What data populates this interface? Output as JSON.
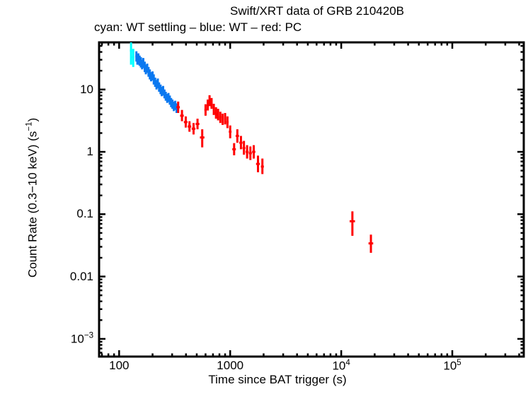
{
  "chart_data": {
    "type": "scatter",
    "title": "Swift/XRT data of GRB 210420B",
    "subtitle": "cyan: WT settling – blue: WT – red: PC",
    "xlabel": "Time since BAT trigger (s)",
    "ylabel": {
      "prefix": "Count Rate (0.3−10 keV) (s",
      "sup": "−1",
      "suffix": ")"
    },
    "xscale": "log",
    "yscale": "log",
    "grid": false,
    "legend_position": "encoded in subtitle colors",
    "xlim": [
      66,
      440000
    ],
    "ylim": [
      0.00052,
      57
    ],
    "x_ticks": [
      {
        "value": 100,
        "label": "100"
      },
      {
        "value": 1000,
        "label": "1000"
      },
      {
        "value": 10000,
        "label": "10",
        "sup": "4"
      },
      {
        "value": 100000,
        "label": "10",
        "sup": "5"
      }
    ],
    "y_ticks": [
      {
        "value": 10,
        "label": "10"
      },
      {
        "value": 1,
        "label": "1"
      },
      {
        "value": 0.1,
        "label": "0.1"
      },
      {
        "value": 0.01,
        "label": "0.01"
      },
      {
        "value": 0.001,
        "label": "10",
        "sup": "−3"
      }
    ],
    "point_format": [
      "time_s",
      "time_err_s",
      "rate",
      "rate_lo",
      "rate_hi"
    ],
    "series": [
      {
        "name": "WT settling",
        "color": "#00ffff",
        "points": [
          [
            128,
            3,
            42,
            25,
            57
          ],
          [
            134,
            3,
            33,
            23,
            45
          ]
        ]
      },
      {
        "name": "WT",
        "color": "#0a78f0",
        "points": [
          [
            143,
            3,
            34,
            28,
            41
          ],
          [
            146,
            3,
            30,
            25,
            36
          ],
          [
            149,
            3,
            31,
            25,
            38
          ],
          [
            153,
            3,
            29,
            24,
            35
          ],
          [
            157,
            3,
            27,
            22.5,
            33
          ],
          [
            161,
            3,
            25,
            21,
            30
          ],
          [
            165,
            3,
            26.5,
            22,
            32
          ],
          [
            170,
            3,
            23,
            19,
            28
          ],
          [
            174,
            3,
            21,
            17.5,
            25
          ],
          [
            179,
            3,
            22,
            18.5,
            26
          ],
          [
            184,
            3,
            19,
            16,
            23
          ],
          [
            189,
            3,
            17.5,
            14.5,
            21
          ],
          [
            194,
            3,
            16,
            13.5,
            19
          ],
          [
            200,
            3,
            16.5,
            14,
            19.5
          ],
          [
            205,
            3,
            14.5,
            12,
            17.5
          ],
          [
            211,
            3,
            13,
            11,
            15.5
          ],
          [
            217,
            3,
            12,
            10,
            14.2
          ],
          [
            223,
            3,
            12.5,
            10.5,
            15
          ],
          [
            229,
            3,
            11,
            9.2,
            13
          ],
          [
            236,
            4,
            10,
            8.4,
            12
          ],
          [
            242,
            4,
            9.2,
            7.8,
            11
          ],
          [
            249,
            4,
            9.6,
            8,
            11.4
          ],
          [
            256,
            4,
            8.5,
            7.2,
            10
          ],
          [
            263,
            4,
            7.8,
            6.6,
            9.2
          ],
          [
            271,
            4,
            7.2,
            6.1,
            8.5
          ],
          [
            278,
            4,
            7.5,
            6.3,
            8.8
          ],
          [
            286,
            5,
            6.8,
            5.7,
            8
          ],
          [
            294,
            5,
            6.2,
            5.2,
            7.3
          ],
          [
            302,
            5,
            5.8,
            4.9,
            6.9
          ],
          [
            311,
            5,
            5.4,
            4.5,
            6.4
          ],
          [
            320,
            5,
            5.6,
            4.7,
            6.6
          ],
          [
            329,
            5,
            5.0,
            4.2,
            6.0
          ]
        ]
      },
      {
        "name": "PC",
        "color": "#ff0000",
        "points": [
          [
            340,
            12,
            5.2,
            4.2,
            6.4
          ],
          [
            368,
            14,
            3.8,
            3.1,
            4.7
          ],
          [
            398,
            15,
            3.0,
            2.45,
            3.7
          ],
          [
            430,
            16,
            2.55,
            2.1,
            3.1
          ],
          [
            468,
            18,
            2.35,
            1.9,
            2.9
          ],
          [
            508,
            20,
            2.8,
            2.3,
            3.4
          ],
          [
            560,
            26,
            1.7,
            1.18,
            2.3
          ],
          [
            600,
            14,
            4.7,
            3.8,
            5.8
          ],
          [
            628,
            12,
            5.6,
            4.6,
            6.9
          ],
          [
            652,
            12,
            6.6,
            5.4,
            8.1
          ],
          [
            680,
            13,
            6.0,
            4.9,
            7.3
          ],
          [
            712,
            14,
            4.8,
            3.9,
            5.9
          ],
          [
            745,
            15,
            4.2,
            3.4,
            5.2
          ],
          [
            778,
            16,
            4.0,
            3.2,
            4.9
          ],
          [
            815,
            17,
            3.6,
            2.9,
            4.4
          ],
          [
            855,
            18,
            3.3,
            2.7,
            4.1
          ],
          [
            900,
            20,
            3.4,
            2.75,
            4.2
          ],
          [
            945,
            22,
            3.0,
            2.4,
            3.7
          ],
          [
            1000,
            28,
            2.1,
            1.65,
            2.65
          ],
          [
            1085,
            40,
            1.1,
            0.88,
            1.38
          ],
          [
            1160,
            40,
            1.8,
            1.4,
            2.3
          ],
          [
            1250,
            42,
            1.4,
            1.1,
            1.8
          ],
          [
            1330,
            40,
            1.15,
            0.9,
            1.5
          ],
          [
            1420,
            45,
            1.0,
            0.78,
            1.28
          ],
          [
            1520,
            48,
            0.95,
            0.74,
            1.22
          ],
          [
            1630,
            55,
            1.0,
            0.78,
            1.28
          ],
          [
            1780,
            70,
            0.64,
            0.47,
            0.87
          ],
          [
            1950,
            60,
            0.58,
            0.44,
            0.78
          ],
          [
            12600,
            700,
            0.077,
            0.045,
            0.111
          ],
          [
            18500,
            900,
            0.034,
            0.024,
            0.047
          ]
        ]
      }
    ]
  }
}
